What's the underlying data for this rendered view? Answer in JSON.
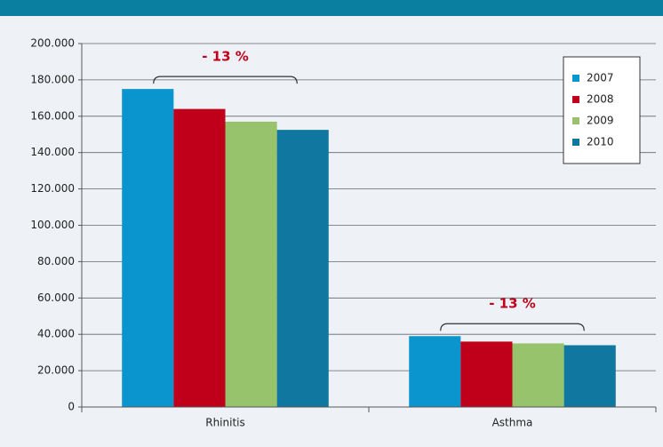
{
  "chart_data": {
    "type": "bar",
    "categories": [
      "Rhinitis",
      "Asthma"
    ],
    "series": [
      {
        "name": "2007",
        "color": "#0b95cf",
        "values": [
          175000,
          39000
        ]
      },
      {
        "name": "2008",
        "color": "#c0001a",
        "values": [
          164000,
          36000
        ]
      },
      {
        "name": "2009",
        "color": "#96c36b",
        "values": [
          157000,
          35000
        ]
      },
      {
        "name": "2010",
        "color": "#0f77a0",
        "values": [
          152500,
          34000
        ]
      }
    ],
    "annotations": [
      "- 13 %",
      "- 13 %"
    ],
    "ylim": [
      0,
      200000
    ],
    "yticks": [
      0,
      {
        "value": 20000,
        "label": "20.000"
      },
      {
        "value": 40000,
        "label": "40.000"
      },
      {
        "value": 60000,
        "label": "60.000"
      },
      {
        "value": 80000,
        "label": "80.000"
      },
      {
        "value": 100000,
        "label": "100.000"
      },
      {
        "value": 120000,
        "label": "120.000"
      },
      {
        "value": 140000,
        "label": "140.000"
      },
      {
        "value": 160000,
        "label": "160.000"
      },
      {
        "value": 180000,
        "label": "180.000"
      },
      {
        "value": 200000,
        "label": "200.000"
      }
    ],
    "grid": true,
    "legend": "upper right"
  }
}
